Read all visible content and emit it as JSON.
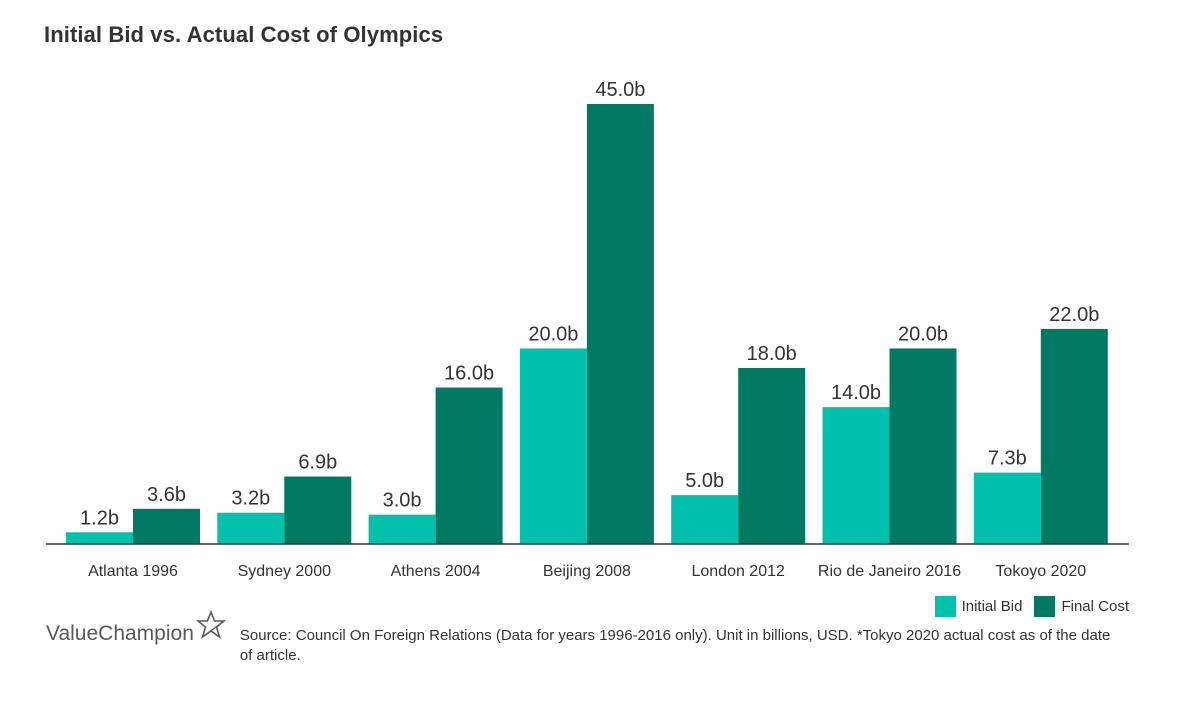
{
  "chart_data": {
    "type": "bar",
    "title": "Initial Bid vs. Actual Cost of Olympics",
    "xlabel": "",
    "ylabel": "",
    "ylim": [
      0,
      45
    ],
    "grid": false,
    "legend_position": "bottom-right",
    "value_suffix": "b",
    "categories": [
      "Atlanta 1996",
      "Sydney 2000",
      "Athens 2004",
      "Beijing 2008",
      "London 2012",
      "Rio de Janeiro 2016",
      "Tokoyo 2020"
    ],
    "series": [
      {
        "name": "Initial Bid",
        "color": "#00C2AC",
        "values": [
          1.2,
          3.2,
          3.0,
          20.0,
          5.0,
          14.0,
          7.3
        ],
        "labels": [
          "1.2b",
          "3.2b",
          "3.0b",
          "20.0b",
          "5.0b",
          "14.0b",
          "7.3b"
        ]
      },
      {
        "name": "Final Cost",
        "color": "#007A63",
        "values": [
          3.6,
          6.9,
          16.0,
          45.0,
          18.0,
          20.0,
          22.0
        ],
        "labels": [
          "3.6b",
          "6.9b",
          "16.0b",
          "45.0b",
          "18.0b",
          "20.0b",
          "22.0b"
        ]
      }
    ]
  },
  "legend": {
    "items": [
      {
        "label": "Initial Bid",
        "color": "#00C2AC"
      },
      {
        "label": "Final Cost",
        "color": "#007A63"
      }
    ]
  },
  "footer": {
    "logo_text": "ValueChampion",
    "logo_icon": "star-outline-icon",
    "source": "Source: Council On Foreign Relations (Data for years 1996-2016 only). Unit in billions, USD. *Tokyo 2020 actual cost as of the date of article."
  },
  "colors": {
    "axis": "#333333",
    "text": "#333333"
  }
}
